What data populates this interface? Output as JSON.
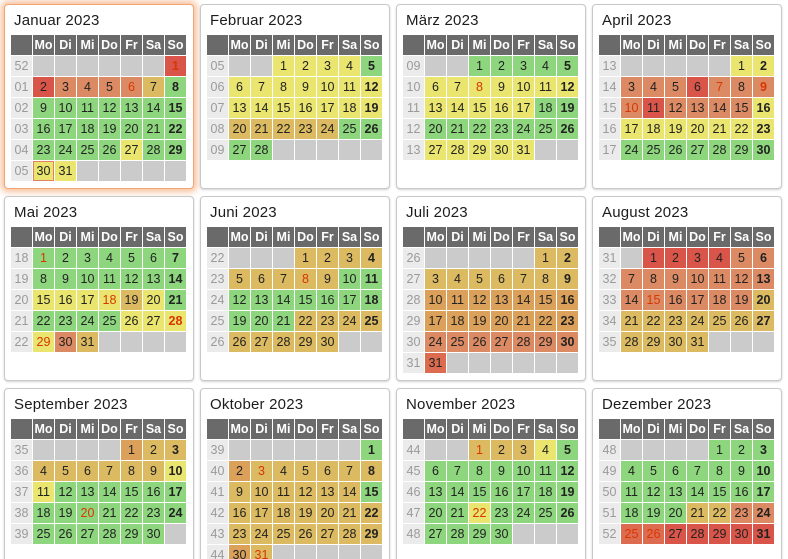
{
  "weekdays": [
    "Mo",
    "Di",
    "Mi",
    "Do",
    "Fr",
    "Sa",
    "So"
  ],
  "colors": {
    "green": "#8ed67e",
    "yellow": "#e9e56f",
    "tan": "#dbba61",
    "orange": "#dba15a",
    "salmon": "#db8a64",
    "salmon_red": "#dc6b50",
    "red": "#d95449",
    "empty_cell": "#cbcbcb",
    "holiday_text": "#d93600",
    "weekday_header_bg": "#6a6a6a",
    "week_number_bg": "#ebebeb",
    "highlight_glow": "#f38a46"
  },
  "months": [
    {
      "title": "Januar 2023",
      "highlighted": true,
      "weeks": [
        {
          "num": "52",
          "days": [
            "",
            "",
            "",
            "",
            "",
            "",
            "1|r|h"
          ]
        },
        {
          "num": "01",
          "days": [
            "2|r",
            "3|s",
            "4|s",
            "5|s",
            "6|s|h",
            "7|t",
            "8|g"
          ]
        },
        {
          "num": "02",
          "days": [
            "9|g",
            "10|g",
            "11|g",
            "12|g",
            "13|g",
            "14|g",
            "15|g"
          ]
        },
        {
          "num": "03",
          "days": [
            "16|g",
            "17|g",
            "18|g",
            "19|g",
            "20|g",
            "21|g",
            "22|g"
          ]
        },
        {
          "num": "04",
          "days": [
            "23|g",
            "24|g",
            "25|g",
            "26|g",
            "27|y",
            "28|g",
            "29|g"
          ]
        },
        {
          "num": "05",
          "days": [
            "30|y|s2",
            "31|y",
            "",
            "",
            "",
            "",
            ""
          ]
        }
      ]
    },
    {
      "title": "Februar 2023",
      "highlighted": false,
      "weeks": [
        {
          "num": "05",
          "days": [
            "",
            "",
            "1|y",
            "2|y",
            "3|y",
            "4|y",
            "5|g"
          ]
        },
        {
          "num": "06",
          "days": [
            "6|y",
            "7|y",
            "8|y",
            "9|y",
            "10|y",
            "11|y",
            "12|y"
          ]
        },
        {
          "num": "07",
          "days": [
            "13|y",
            "14|y",
            "15|y",
            "16|y",
            "17|y",
            "18|y",
            "19|y"
          ]
        },
        {
          "num": "08",
          "days": [
            "20|t",
            "21|t",
            "22|t",
            "23|t",
            "24|t",
            "25|g",
            "26|g"
          ]
        },
        {
          "num": "09",
          "days": [
            "27|g",
            "28|g",
            "",
            "",
            "",
            "",
            ""
          ]
        }
      ]
    },
    {
      "title": "März 2023",
      "highlighted": false,
      "weeks": [
        {
          "num": "09",
          "days": [
            "",
            "",
            "1|g",
            "2|g",
            "3|g",
            "4|g",
            "5|g"
          ]
        },
        {
          "num": "10",
          "days": [
            "6|y",
            "7|y",
            "8|y|h",
            "9|y",
            "10|y",
            "11|y",
            "12|y"
          ]
        },
        {
          "num": "11",
          "days": [
            "13|y",
            "14|y",
            "15|y",
            "16|y",
            "17|y",
            "18|g",
            "19|g"
          ]
        },
        {
          "num": "12",
          "days": [
            "20|g",
            "21|g",
            "22|g",
            "23|g",
            "24|g",
            "25|g",
            "26|g"
          ]
        },
        {
          "num": "13",
          "days": [
            "27|y",
            "28|y",
            "29|y",
            "30|y",
            "31|y",
            "",
            ""
          ]
        }
      ]
    },
    {
      "title": "April 2023",
      "highlighted": false,
      "weeks": [
        {
          "num": "13",
          "days": [
            "",
            "",
            "",
            "",
            "",
            "1|y",
            "2|y"
          ]
        },
        {
          "num": "14",
          "days": [
            "3|s",
            "4|s",
            "5|s",
            "6|r",
            "7|s|h",
            "8|s",
            "9|s|h"
          ]
        },
        {
          "num": "15",
          "days": [
            "10|s|h",
            "11|r",
            "12|s",
            "13|s",
            "14|s",
            "15|s",
            "16|y"
          ]
        },
        {
          "num": "16",
          "days": [
            "17|y",
            "18|y",
            "19|y",
            "20|y",
            "21|y",
            "22|y",
            "23|y"
          ]
        },
        {
          "num": "17",
          "days": [
            "24|g",
            "25|g",
            "26|g",
            "27|g",
            "28|g",
            "29|g",
            "30|g"
          ]
        }
      ]
    },
    {
      "title": "Mai 2023",
      "highlighted": false,
      "weeks": [
        {
          "num": "18",
          "days": [
            "1|g|h",
            "2|g",
            "3|g",
            "4|g",
            "5|g",
            "6|g",
            "7|g"
          ]
        },
        {
          "num": "19",
          "days": [
            "8|g",
            "9|g",
            "10|g",
            "11|g",
            "12|g",
            "13|g",
            "14|g"
          ]
        },
        {
          "num": "20",
          "days": [
            "15|y",
            "16|y",
            "17|y",
            "18|y|h",
            "19|t",
            "20|y",
            "21|g"
          ]
        },
        {
          "num": "21",
          "days": [
            "22|g",
            "23|g",
            "24|g",
            "25|g",
            "26|y",
            "27|y",
            "28|y|h"
          ]
        },
        {
          "num": "22",
          "days": [
            "29|y|h",
            "30|s",
            "31|t",
            "",
            "",
            "",
            ""
          ]
        }
      ]
    },
    {
      "title": "Juni 2023",
      "highlighted": false,
      "weeks": [
        {
          "num": "22",
          "days": [
            "",
            "",
            "",
            "1|t",
            "2|t",
            "3|t",
            "4|t"
          ]
        },
        {
          "num": "23",
          "days": [
            "5|t",
            "6|t",
            "7|t",
            "8|t|h",
            "9|t",
            "10|g",
            "11|g"
          ]
        },
        {
          "num": "24",
          "days": [
            "12|g",
            "13|g",
            "14|g",
            "15|g",
            "16|g",
            "17|g",
            "18|g"
          ]
        },
        {
          "num": "25",
          "days": [
            "19|g",
            "20|g",
            "21|g",
            "22|t",
            "23|t",
            "24|t",
            "25|t"
          ]
        },
        {
          "num": "26",
          "days": [
            "26|t",
            "27|t",
            "28|t",
            "29|t",
            "30|t",
            "",
            ""
          ]
        }
      ]
    },
    {
      "title": "Juli 2023",
      "highlighted": false,
      "weeks": [
        {
          "num": "26",
          "days": [
            "",
            "",
            "",
            "",
            "",
            "1|t",
            "2|t"
          ]
        },
        {
          "num": "27",
          "days": [
            "3|t",
            "4|t",
            "5|t",
            "6|t",
            "7|t",
            "8|t",
            "9|t"
          ]
        },
        {
          "num": "28",
          "days": [
            "10|o",
            "11|o",
            "12|o",
            "13|o",
            "14|o",
            "15|o",
            "16|o"
          ]
        },
        {
          "num": "29",
          "days": [
            "17|o",
            "18|o",
            "19|o",
            "20|o",
            "21|o",
            "22|o",
            "23|o"
          ]
        },
        {
          "num": "30",
          "days": [
            "24|s",
            "25|s",
            "26|s",
            "27|s",
            "28|s",
            "29|s",
            "30|s"
          ]
        },
        {
          "num": "31",
          "days": [
            "31|sr",
            "",
            "",
            "",
            "",
            "",
            ""
          ]
        }
      ]
    },
    {
      "title": "August 2023",
      "highlighted": false,
      "weeks": [
        {
          "num": "31",
          "days": [
            "",
            "1|r",
            "2|r",
            "3|r",
            "4|r",
            "5|s",
            "6|s"
          ]
        },
        {
          "num": "32",
          "days": [
            "7|s",
            "8|s",
            "9|s",
            "10|s",
            "11|s",
            "12|s",
            "13|s"
          ]
        },
        {
          "num": "33",
          "days": [
            "14|s",
            "15|s|h",
            "16|s",
            "17|s",
            "18|s",
            "19|s",
            "20|t"
          ]
        },
        {
          "num": "34",
          "days": [
            "21|t",
            "22|t",
            "23|t",
            "24|t",
            "25|t",
            "26|t",
            "27|t"
          ]
        },
        {
          "num": "35",
          "days": [
            "28|t",
            "29|t",
            "30|t",
            "31|t",
            "",
            "",
            ""
          ]
        }
      ]
    },
    {
      "title": "September 2023",
      "highlighted": false,
      "weeks": [
        {
          "num": "35",
          "days": [
            "",
            "",
            "",
            "",
            "1|o",
            "2|t",
            "3|t"
          ]
        },
        {
          "num": "36",
          "days": [
            "4|t",
            "5|t",
            "6|t",
            "7|t",
            "8|t",
            "9|t",
            "10|y"
          ]
        },
        {
          "num": "37",
          "days": [
            "11|y",
            "12|g",
            "13|g",
            "14|g",
            "15|g",
            "16|g",
            "17|g"
          ]
        },
        {
          "num": "38",
          "days": [
            "18|g",
            "19|g",
            "20|g|h",
            "21|g",
            "22|g",
            "23|g",
            "24|g"
          ]
        },
        {
          "num": "39",
          "days": [
            "25|g",
            "26|g",
            "27|g",
            "28|g",
            "29|g",
            "30|g",
            ""
          ]
        }
      ]
    },
    {
      "title": "Oktober 2023",
      "highlighted": false,
      "weeks": [
        {
          "num": "39",
          "days": [
            "",
            "",
            "",
            "",
            "",
            "",
            "1|g"
          ]
        },
        {
          "num": "40",
          "days": [
            "2|o",
            "3|t|h",
            "4|t",
            "5|t",
            "6|t",
            "7|t",
            "8|t"
          ]
        },
        {
          "num": "41",
          "days": [
            "9|t",
            "10|t",
            "11|t",
            "12|t",
            "13|t",
            "14|t",
            "15|g"
          ]
        },
        {
          "num": "42",
          "days": [
            "16|t",
            "17|t",
            "18|t",
            "19|t",
            "20|t",
            "21|t",
            "22|t"
          ]
        },
        {
          "num": "43",
          "days": [
            "23|t",
            "24|t",
            "25|t",
            "26|t",
            "27|t",
            "28|t",
            "29|t"
          ]
        },
        {
          "num": "44",
          "days": [
            "30|o",
            "31|t|h",
            "",
            "",
            "",
            "",
            ""
          ]
        }
      ]
    },
    {
      "title": "November 2023",
      "highlighted": false,
      "weeks": [
        {
          "num": "44",
          "days": [
            "",
            "",
            "1|t|h",
            "2|t",
            "3|t",
            "4|y",
            "5|g"
          ]
        },
        {
          "num": "45",
          "days": [
            "6|g",
            "7|g",
            "8|g",
            "9|g",
            "10|g",
            "11|g",
            "12|g"
          ]
        },
        {
          "num": "46",
          "days": [
            "13|g",
            "14|g",
            "15|g",
            "16|g",
            "17|g",
            "18|g",
            "19|g"
          ]
        },
        {
          "num": "47",
          "days": [
            "20|g",
            "21|g",
            "22|y|h",
            "23|g",
            "24|g",
            "25|g",
            "26|g"
          ]
        },
        {
          "num": "48",
          "days": [
            "27|g",
            "28|g",
            "29|g",
            "30|g",
            "",
            "",
            ""
          ]
        }
      ]
    },
    {
      "title": "Dezember 2023",
      "highlighted": false,
      "weeks": [
        {
          "num": "48",
          "days": [
            "",
            "",
            "",
            "",
            "1|g",
            "2|g",
            "3|g"
          ]
        },
        {
          "num": "49",
          "days": [
            "4|g",
            "5|g",
            "6|g",
            "7|g",
            "8|g",
            "9|g",
            "10|g"
          ]
        },
        {
          "num": "50",
          "days": [
            "11|g",
            "12|g",
            "13|g",
            "14|g",
            "15|g",
            "16|g",
            "17|g"
          ]
        },
        {
          "num": "51",
          "days": [
            "18|g",
            "19|g",
            "20|g",
            "21|t",
            "22|t",
            "23|s",
            "24|s"
          ]
        },
        {
          "num": "52",
          "days": [
            "25|sr|h",
            "26|sr|h",
            "27|r",
            "28|r",
            "29|r",
            "30|r",
            "31|r"
          ]
        }
      ]
    }
  ]
}
